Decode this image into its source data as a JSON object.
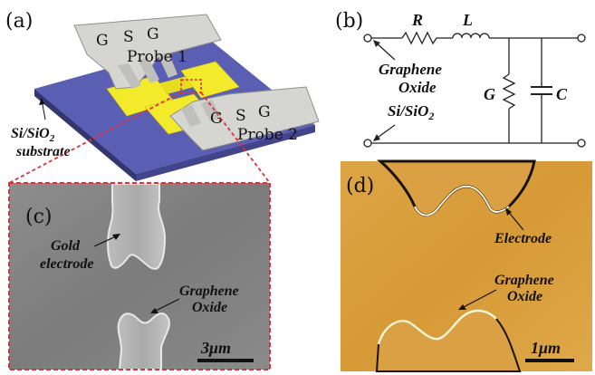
{
  "panels": {
    "a": {
      "letter": "(a)",
      "probe1": {
        "g1": "G",
        "s": "S",
        "g2": "G",
        "label": "Probe 1"
      },
      "probe2": {
        "g1": "G",
        "s": "S",
        "g2": "G",
        "label": "Probe 2"
      },
      "substrate_line1": "Si/SiO",
      "substrate_sub": "2",
      "substrate_line2": "substrate"
    },
    "b": {
      "letter": "(b)",
      "R": "R",
      "L": "L",
      "G": "G",
      "C": "C",
      "graphene_line1": "Graphene",
      "graphene_line2": "Oxide",
      "substrate": "Si/SiO",
      "substrate_sub": "2"
    },
    "c": {
      "letter": "(c)",
      "gold_line1": "Gold",
      "gold_line2": "electrode",
      "graphene_line1": "Graphene",
      "graphene_line2": "Oxide",
      "scale": "3μm"
    },
    "d": {
      "letter": "(d)",
      "electrode": "Electrode",
      "graphene_line1": "Graphene",
      "graphene_line2": "Oxide",
      "scale": "1μm"
    }
  },
  "colors": {
    "substrate_top": "#5b5fb3",
    "substrate_side": "#3a3d7e",
    "gold_pad": "#f2ea2a",
    "probe": "#d5d5d2",
    "zoom_dash": "#e0303a",
    "sem_bg": "#8a8a8a",
    "afm_bg": "#d9a040"
  }
}
